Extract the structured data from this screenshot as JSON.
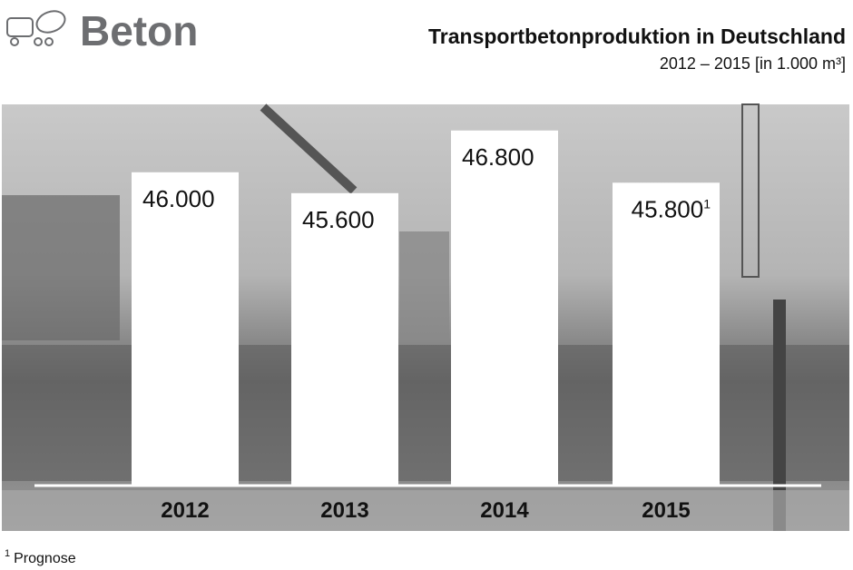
{
  "logo": "Beton",
  "chart_data": {
    "type": "bar",
    "title": "Transportbetonproduktion in Deutschland",
    "subtitle": "2012 – 2015 [in 1.000 m³]",
    "categories": [
      "2012",
      "2013",
      "2014",
      "2015"
    ],
    "values": [
      46000,
      45600,
      46800,
      45800
    ],
    "value_labels": [
      "46.000",
      "45.600",
      "46.800",
      "45.800"
    ],
    "value_label_notes": [
      null,
      null,
      null,
      "1"
    ],
    "color": "#ffffff",
    "ylim": [
      40000,
      47300
    ],
    "footnote": {
      "marker": "1",
      "text": "Prognose"
    }
  }
}
